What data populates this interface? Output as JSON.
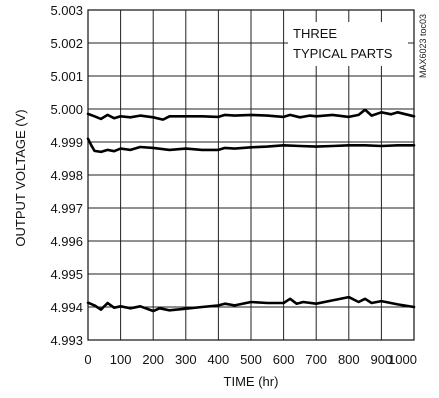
{
  "chart_data": {
    "type": "line",
    "xlabel": "TIME (hr)",
    "ylabel": "OUTPUT VOLTAGE (V)",
    "xlim": [
      0,
      1000
    ],
    "ylim": [
      4.993,
      5.003
    ],
    "xticks": [
      "0",
      "100",
      "200",
      "300",
      "400",
      "500",
      "600",
      "700",
      "800",
      "900",
      "1000"
    ],
    "yticks": [
      "4.993",
      "4.994",
      "4.995",
      "4.996",
      "4.997",
      "4.998",
      "4.999",
      "5.000",
      "5.001",
      "5.002",
      "5.003"
    ],
    "grid": true,
    "annotation": [
      "THREE",
      "TYPICAL PARTS"
    ],
    "figure_code": "MAX6023 toc03",
    "series": [
      {
        "x": [
          0,
          20,
          40,
          60,
          80,
          100,
          130,
          160,
          200,
          230,
          250,
          300,
          350,
          400,
          420,
          450,
          500,
          550,
          600,
          620,
          650,
          680,
          700,
          750,
          800,
          830,
          850,
          870,
          900,
          930,
          950,
          1000
        ],
        "values": [
          4.99985,
          4.99978,
          4.9997,
          4.99982,
          4.99972,
          4.99978,
          4.99975,
          4.9998,
          4.99975,
          4.99968,
          4.99978,
          4.99978,
          4.99978,
          4.99976,
          4.99982,
          4.9998,
          4.99982,
          4.9998,
          4.99976,
          4.99982,
          4.99975,
          4.9998,
          4.99978,
          4.99982,
          4.99976,
          4.99982,
          4.99998,
          4.9998,
          4.9999,
          4.99984,
          4.9999,
          4.99978
        ]
      },
      {
        "x": [
          0,
          10,
          20,
          40,
          60,
          80,
          100,
          130,
          160,
          200,
          250,
          300,
          350,
          400,
          420,
          450,
          500,
          550,
          600,
          650,
          700,
          750,
          800,
          850,
          900,
          950,
          1000
        ],
        "values": [
          4.9991,
          4.9989,
          4.99873,
          4.9987,
          4.99876,
          4.99872,
          4.9988,
          4.99876,
          4.99885,
          4.99882,
          4.99876,
          4.9988,
          4.99876,
          4.99876,
          4.99882,
          4.9988,
          4.99884,
          4.99886,
          4.9989,
          4.99888,
          4.99886,
          4.99888,
          4.9989,
          4.9989,
          4.99888,
          4.9989,
          4.9989
        ]
      },
      {
        "x": [
          0,
          20,
          40,
          60,
          80,
          100,
          130,
          160,
          200,
          220,
          250,
          300,
          350,
          400,
          420,
          450,
          500,
          550,
          600,
          620,
          640,
          660,
          700,
          750,
          800,
          830,
          850,
          870,
          900,
          950,
          1000
        ],
        "values": [
          4.99413,
          4.99405,
          4.99392,
          4.99412,
          4.99398,
          4.99402,
          4.99396,
          4.99402,
          4.99388,
          4.99396,
          4.9939,
          4.99395,
          4.994,
          4.99405,
          4.9941,
          4.99405,
          4.99415,
          4.99412,
          4.99412,
          4.99425,
          4.9941,
          4.99415,
          4.9941,
          4.9942,
          4.9943,
          4.99415,
          4.99425,
          4.99412,
          4.99418,
          4.99408,
          4.994
        ]
      }
    ]
  }
}
